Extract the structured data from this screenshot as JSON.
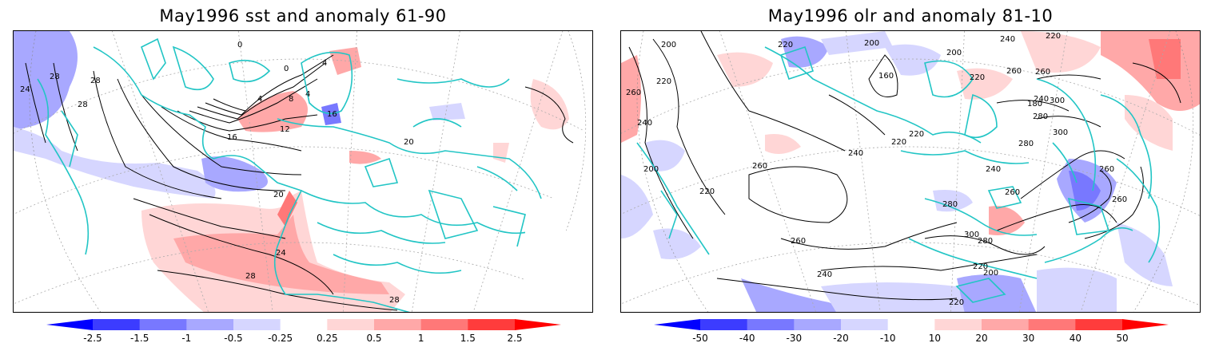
{
  "panels": {
    "left": {
      "title": "May1996 sst and anomaly 61-90",
      "contour_labels": [
        "0",
        "0",
        "4",
        "4",
        "4",
        "8",
        "12",
        "16",
        "16",
        "20",
        "20",
        "24",
        "24",
        "28",
        "28",
        "28",
        "28",
        "28"
      ],
      "colorbar": {
        "ticks": [
          "-2.5",
          "-1.5",
          "-1",
          "-0.5",
          "-0.25",
          "0.25",
          "0.5",
          "1",
          "1.5",
          "2.5"
        ],
        "colors": [
          "#0000ff",
          "#3c3cff",
          "#7878ff",
          "#a8a8ff",
          "#d6d6ff",
          "#ffffff",
          "#ffd6d6",
          "#ffa8a8",
          "#ff7878",
          "#ff3c3c",
          "#ff0000"
        ]
      }
    },
    "right": {
      "title": "May1996 olr and anomaly 81-10",
      "contour_labels": [
        "200",
        "200",
        "200",
        "200",
        "200",
        "220",
        "220",
        "220",
        "220",
        "220",
        "220",
        "220",
        "220",
        "220",
        "240",
        "240",
        "240",
        "240",
        "240",
        "240",
        "260",
        "260",
        "260",
        "260",
        "260",
        "260",
        "260",
        "260",
        "280",
        "280",
        "280",
        "280",
        "300",
        "300",
        "300",
        "160",
        "180"
      ],
      "colorbar": {
        "ticks": [
          "-50",
          "-40",
          "-30",
          "-20",
          "-10",
          "10",
          "20",
          "30",
          "40",
          "50"
        ],
        "colors": [
          "#0000ff",
          "#3c3cff",
          "#7878ff",
          "#a8a8ff",
          "#d6d6ff",
          "#ffffff",
          "#ffd6d6",
          "#ffa8a8",
          "#ff7878",
          "#ff3c3c",
          "#ff0000"
        ]
      }
    }
  },
  "colors": {
    "coastline": "#22c5c5",
    "contour": "#000000",
    "grid": "#aaaaaa"
  }
}
